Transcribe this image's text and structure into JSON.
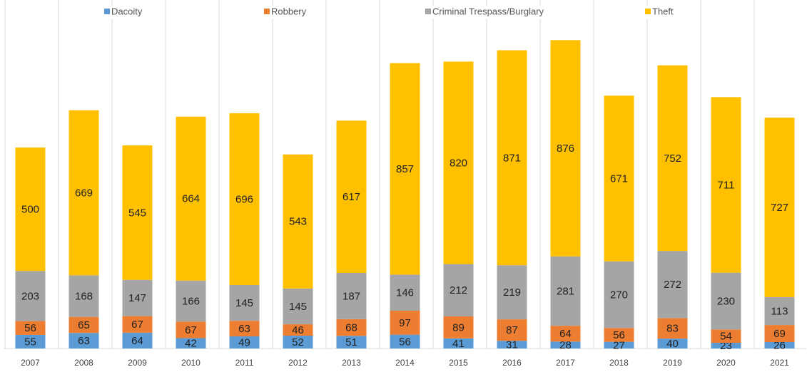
{
  "chart_data": {
    "type": "stacked_bar",
    "categories": [
      "2007",
      "2008",
      "2009",
      "2010",
      "2011",
      "2012",
      "2013",
      "2014",
      "2015",
      "2016",
      "2017",
      "2018",
      "2019",
      "2020",
      "2021"
    ],
    "series": [
      {
        "name": "Dacoity",
        "color": "#5b9bd5",
        "values": [
          55,
          63,
          64,
          42,
          49,
          52,
          51,
          56,
          41,
          31,
          28,
          27,
          40,
          23,
          26
        ]
      },
      {
        "name": "Robbery",
        "color": "#ed7d31",
        "values": [
          56,
          65,
          67,
          67,
          63,
          46,
          68,
          97,
          89,
          87,
          64,
          56,
          83,
          54,
          69
        ]
      },
      {
        "name": "Criminal Trespass/Burglary",
        "color": "#a5a5a5",
        "values": [
          203,
          168,
          147,
          166,
          145,
          145,
          187,
          146,
          212,
          219,
          281,
          270,
          272,
          230,
          113
        ]
      },
      {
        "name": "Theft",
        "color": "#ffc000",
        "values": [
          500,
          669,
          545,
          664,
          696,
          543,
          617,
          857,
          820,
          871,
          876,
          671,
          752,
          711,
          727
        ]
      }
    ],
    "ylim": [
      0,
      1400
    ],
    "legend": "top"
  }
}
